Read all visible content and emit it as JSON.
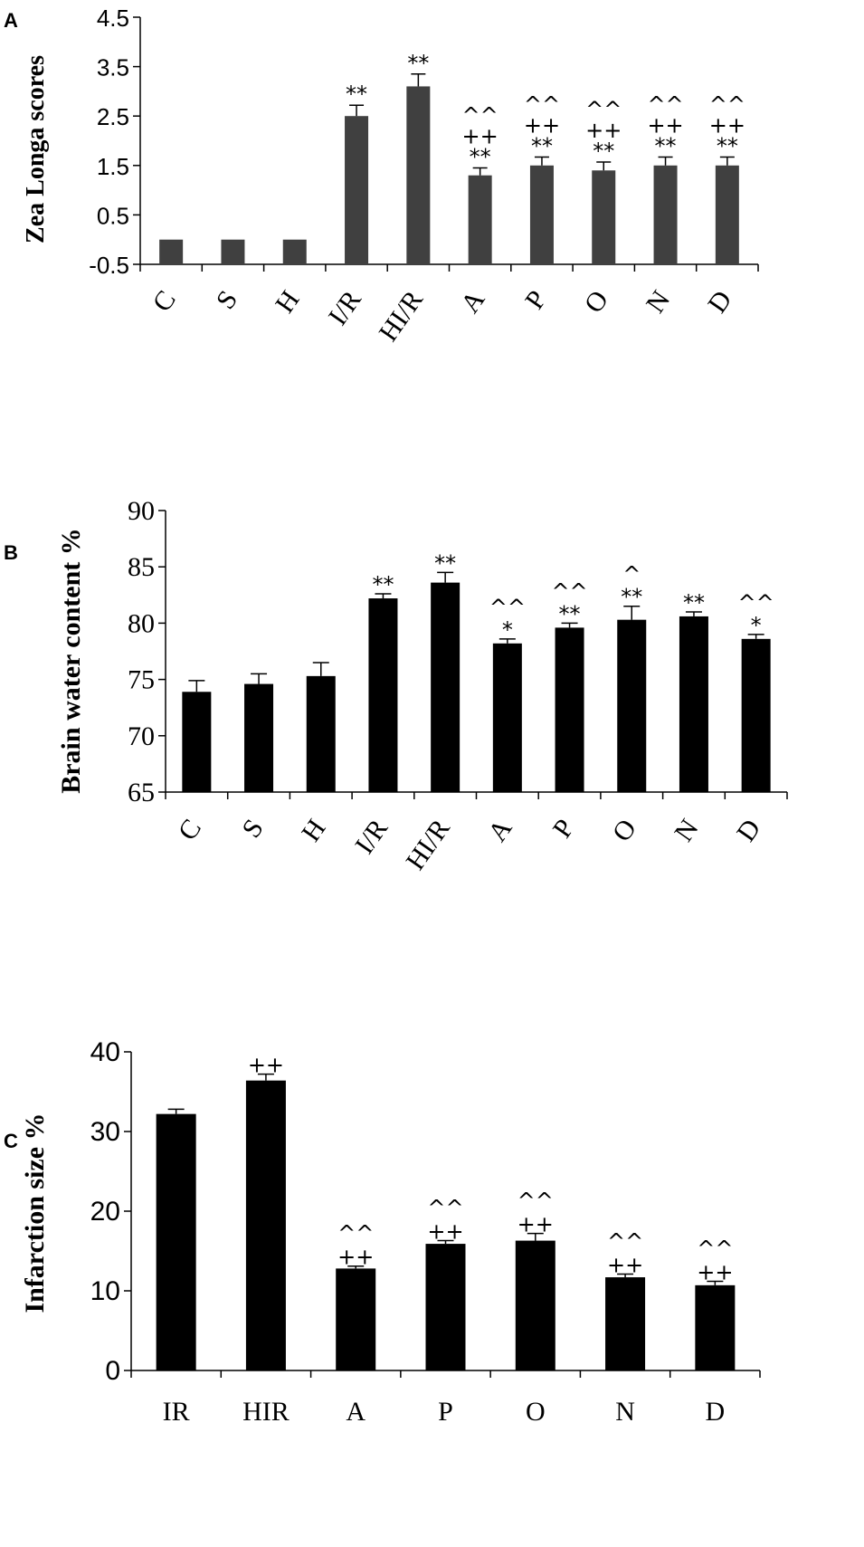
{
  "chart_data": [
    {
      "type": "bar",
      "panel": "A",
      "ylabel": "Zea  Longa  scores",
      "ylim": [
        -0.5,
        4.5
      ],
      "yticks": [
        "-0.5",
        "0.5",
        "1.5",
        "2.5",
        "3.5",
        "4.5"
      ],
      "categories": [
        "C",
        "S",
        "H",
        "I/R",
        "HI/R",
        "A",
        "P",
        "O",
        "N",
        "D"
      ],
      "values": [
        0,
        0,
        0,
        2.5,
        3.1,
        1.3,
        1.5,
        1.4,
        1.5,
        1.5
      ],
      "errors": [
        0,
        0,
        0,
        0.22,
        0.25,
        0.15,
        0.17,
        0.17,
        0.17,
        0.17
      ],
      "bar_color": "#404040",
      "annotations": [
        [],
        [],
        [],
        [
          "**"
        ],
        [
          "**"
        ],
        [
          "^^",
          "++",
          "**"
        ],
        [
          "^^",
          "++",
          "**"
        ],
        [
          "^^",
          "++",
          "**"
        ],
        [
          "^^",
          "++",
          "**"
        ],
        [
          "^^",
          "++",
          "**"
        ]
      ]
    },
    {
      "type": "bar",
      "panel": "B",
      "ylabel": "Brain  water content %",
      "ylim": [
        65,
        90
      ],
      "yticks": [
        "65",
        "70",
        "75",
        "80",
        "85",
        "90"
      ],
      "categories": [
        "C",
        "S",
        "H",
        "I/R",
        "HI/R",
        "A",
        "P",
        "O",
        "N",
        "D"
      ],
      "values": [
        73.9,
        74.6,
        75.3,
        82.2,
        83.6,
        78.2,
        79.6,
        80.3,
        80.6,
        78.6
      ],
      "errors": [
        1.0,
        0.9,
        1.2,
        0.4,
        0.9,
        0.4,
        0.4,
        1.2,
        0.4,
        0.4
      ],
      "bar_color": "#000000",
      "annotations": [
        [],
        [],
        [],
        [
          "**"
        ],
        [
          "**"
        ],
        [
          "^^",
          "*"
        ],
        [
          "^^",
          "**"
        ],
        [
          "^",
          "**"
        ],
        [
          "**"
        ],
        [
          "^^",
          "*"
        ]
      ]
    },
    {
      "type": "bar",
      "panel": "C",
      "ylabel": "Infarction size %",
      "ylim": [
        0,
        40
      ],
      "yticks": [
        "0",
        "10",
        "20",
        "30",
        "40"
      ],
      "categories": [
        "IR",
        "HIR",
        "A",
        "P",
        "O",
        "N",
        "D"
      ],
      "values": [
        32.2,
        36.4,
        12.8,
        15.9,
        16.3,
        11.7,
        10.7
      ],
      "errors": [
        0.6,
        0.8,
        0.3,
        0.4,
        0.9,
        0.4,
        0.5
      ],
      "bar_color": "#000000",
      "annotations": [
        [],
        [
          "++"
        ],
        [
          "^^",
          "++"
        ],
        [
          "^^",
          "++"
        ],
        [
          "^^",
          "++"
        ],
        [
          "^^",
          "++"
        ],
        [
          "^^",
          "++"
        ]
      ]
    }
  ]
}
